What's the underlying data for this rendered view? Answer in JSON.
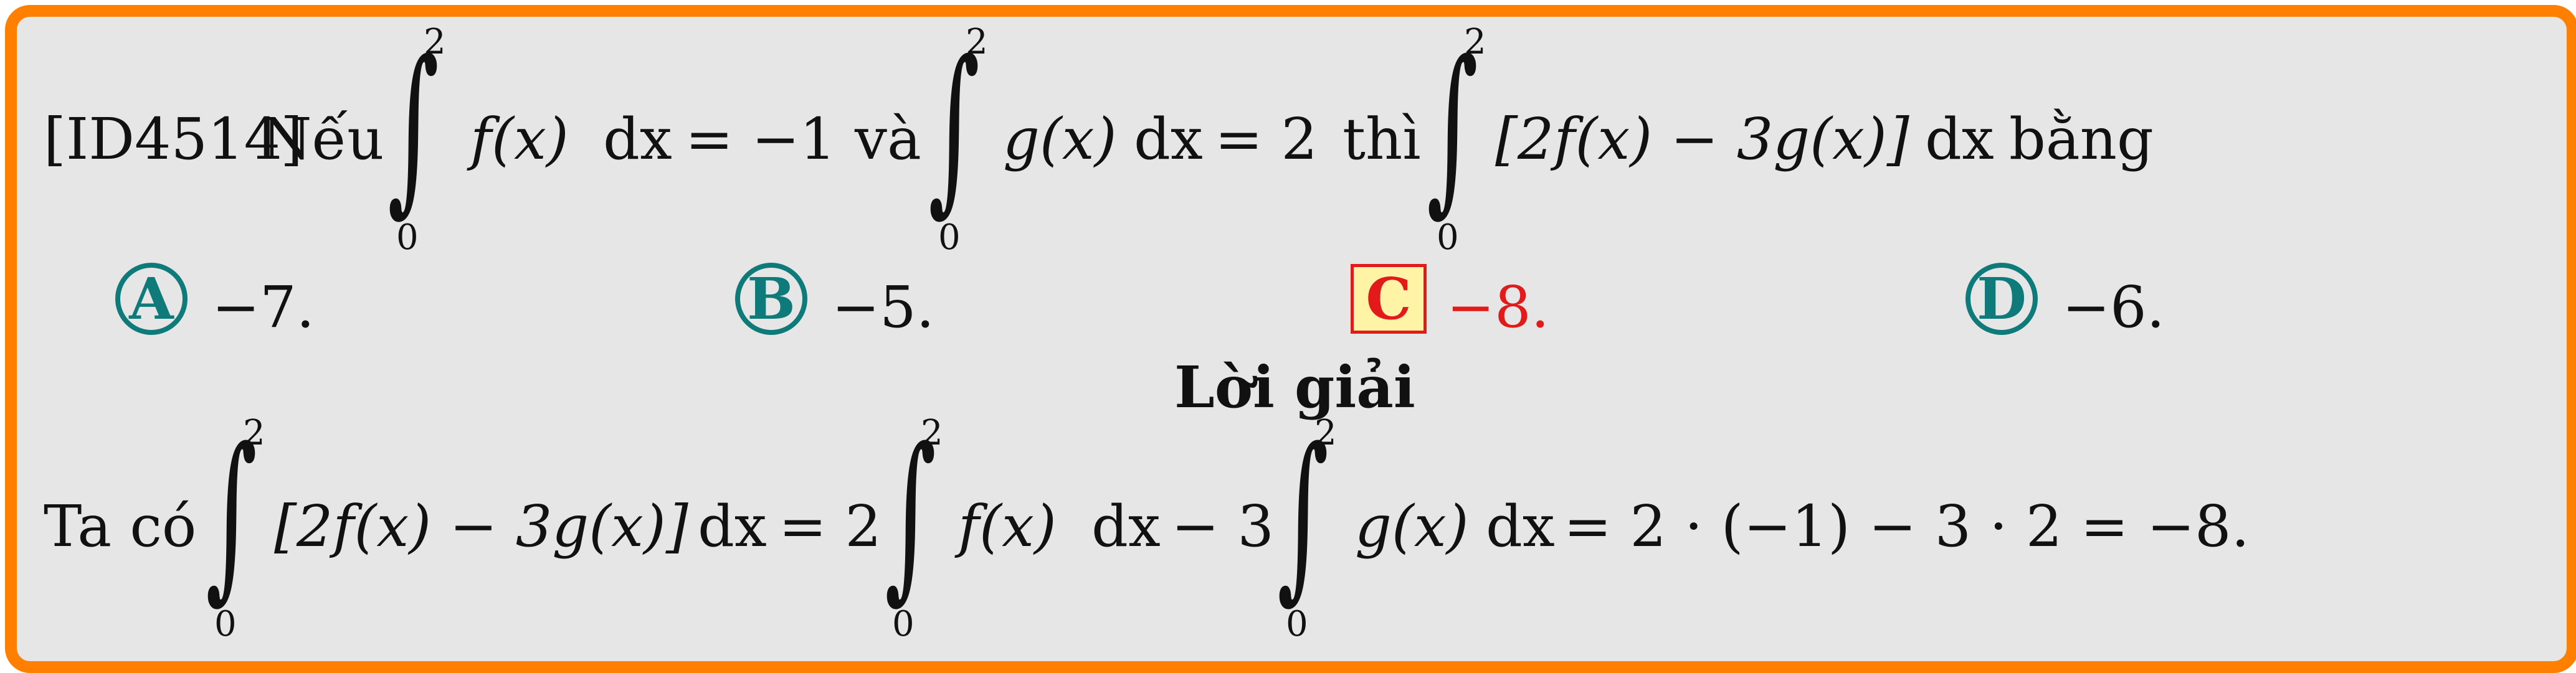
{
  "question": {
    "id_tag": "[ID4514]",
    "lead": "Nếu",
    "int1_integrand": "f(x)",
    "dx": "dx",
    "eq1": "= −1",
    "connector": "và",
    "int2_integrand": "g(x)",
    "eq2": "= 2",
    "then": "thì",
    "int3_integrand": "[2f(x) − 3g(x)]",
    "ending": "bằng",
    "lower": "0",
    "upper": "2"
  },
  "choices": [
    {
      "letter": "A",
      "value": "−7.",
      "correct": false
    },
    {
      "letter": "B",
      "value": "−5.",
      "correct": false
    },
    {
      "letter": "C",
      "value": "−8.",
      "correct": true
    },
    {
      "letter": "D",
      "value": "−6.",
      "correct": false
    }
  ],
  "solution": {
    "heading": "Lời giải",
    "lead": "Ta có",
    "integrand1": "[2f(x) − 3g(x)]",
    "dx": "dx",
    "eq_two": "= 2",
    "integrand2": "f(x)",
    "minus_three": "− 3",
    "integrand3": "g(x)",
    "result": "= 2 · (−1) − 3 · 2 = −8.",
    "lower": "0",
    "upper": "2"
  },
  "colors": {
    "border": "#ff7f00",
    "background": "#e6e6e6",
    "choice_circle": "#0f7a7a",
    "correct": "#e31a1a",
    "correct_box_fill": "#fff4a6"
  }
}
